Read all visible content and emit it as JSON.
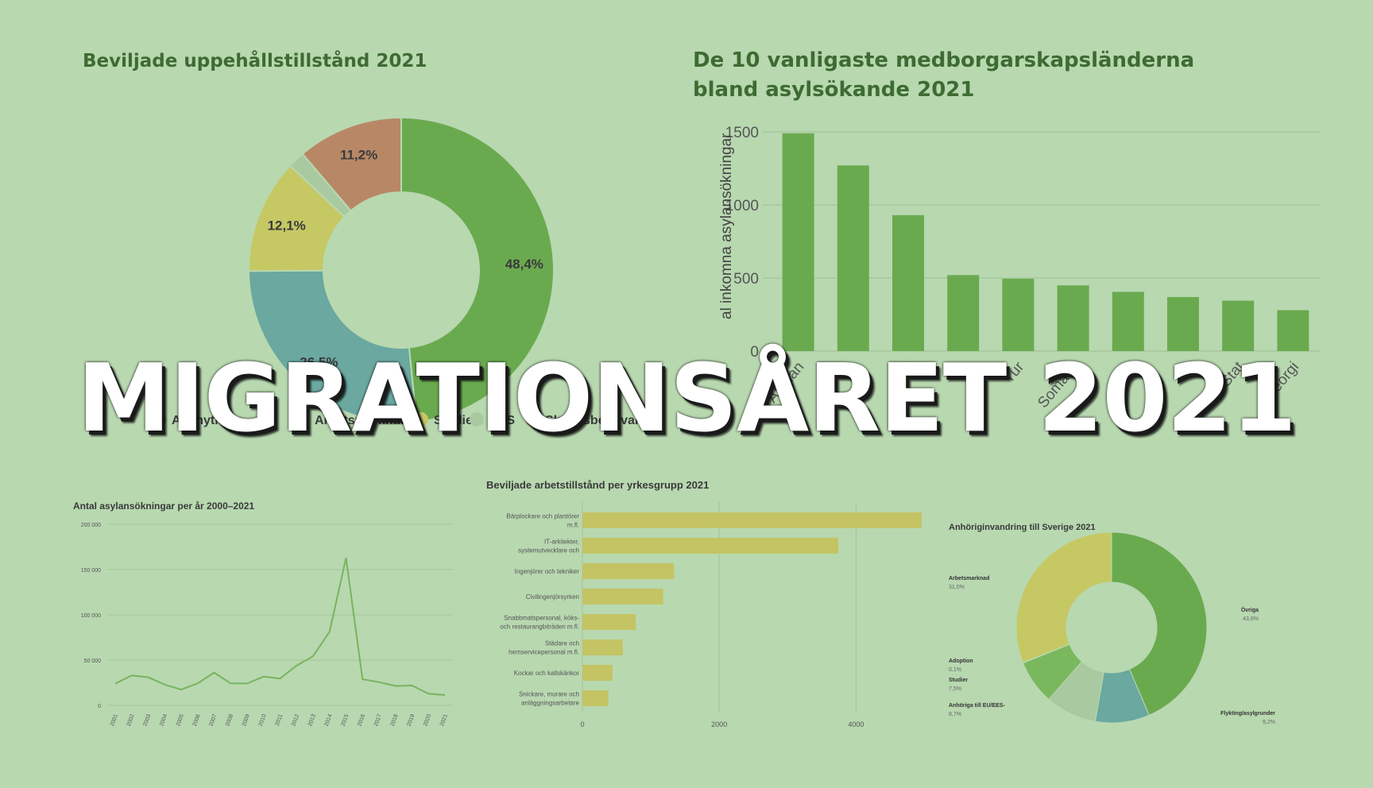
{
  "overlay": {
    "headline": "MIGRATIONSÅRET 2021"
  },
  "colors": {
    "background": "#b8d8b0",
    "green": "#6aaa4f",
    "teal": "#6aa8a0",
    "yellow": "#c6c864",
    "pale": "#a9c9a0",
    "brown": "#b88866",
    "bar_green": "#6aaa4f",
    "bar_yellow": "#c4c464",
    "line_green": "#78b45c"
  },
  "chart_data": [
    {
      "type": "pie",
      "title": "Beviljade uppehållstillstånd 2021",
      "slices": [
        {
          "label": "Anknytning",
          "value": 48.4,
          "display": "48,4%",
          "color": "#6aaa4f"
        },
        {
          "label": "Arbetsmarknad",
          "value": 26.5,
          "display": "26,5%",
          "color": "#6aa8a0"
        },
        {
          "label": "Studier",
          "value": 12.1,
          "display": "12,1%",
          "color": "#c6c864"
        },
        {
          "label": "EES",
          "value": 1.8,
          "display": "",
          "color": "#a9c9a0"
        },
        {
          "label": "Skyddsbehövande",
          "value": 11.2,
          "display": "11,2%",
          "color": "#b88866"
        }
      ],
      "legend_visible": [
        "Anknytning",
        "Arbetsmarknad",
        "Studier",
        "EES",
        "Skyddsbehövande"
      ],
      "legend_partial": [
        "nknyt",
        "Arbetsm",
        "l",
        "EES",
        "G",
        "ttn",
        "rand"
      ]
    },
    {
      "type": "bar",
      "title": "De 10 vanligaste medborgarskapsländerna bland asylsökande 2021",
      "ylabel": "Antal inkomna asylansökningar",
      "ylabel_visible": "al inkomna asylansökningar",
      "ylim": [
        0,
        1500
      ],
      "yticks": [
        "1500",
        "1000",
        "500",
        "0"
      ],
      "categories": [
        "Afghanistan",
        "Syrien",
        "Irak",
        "Iran",
        "Turkiet",
        "Somalia",
        "Eritrea",
        "Uzbekistan",
        "Statslös",
        "Georgien"
      ],
      "category_visible": [
        "Afghan",
        "",
        "ak",
        "n",
        "Tur",
        "Somalia",
        "Entr",
        "",
        "Stat",
        "Georgi"
      ],
      "values": [
        1490,
        1270,
        930,
        520,
        495,
        450,
        405,
        370,
        345,
        280
      ]
    },
    {
      "type": "line",
      "title": "Antal asylansökningar per år 2000–2021",
      "ylim": [
        0,
        200000
      ],
      "yticks": [
        "200 000",
        "150 000",
        "100 000",
        "50 000",
        "0"
      ],
      "x": [
        "2001",
        "2002",
        "2003",
        "2004",
        "2005",
        "2006",
        "2007",
        "2008",
        "2009",
        "2010",
        "2011",
        "2012",
        "2013",
        "2014",
        "2015",
        "2016",
        "2017",
        "2018",
        "2019",
        "2020",
        "2021"
      ],
      "values": [
        24000,
        33000,
        31000,
        23000,
        17500,
        24300,
        36200,
        24300,
        24200,
        31800,
        29600,
        43900,
        54300,
        81300,
        162900,
        28900,
        25700,
        21500,
        21900,
        12900,
        11400
      ]
    },
    {
      "type": "bar",
      "orientation": "horizontal",
      "title": "Beviljade arbetstillstånd per yrkesgrupp 2021",
      "categories": [
        [
          "Bärplockare och plantörer",
          "m.fl."
        ],
        [
          "IT-arkitekter,",
          "systemutvecklare och"
        ],
        [
          "Ingenjörer och tekniker"
        ],
        [
          "Civilingenjörsyrken"
        ],
        [
          "Snabbmatspersonal, köks-",
          "och restaurangbiträden m.fl."
        ],
        [
          "Städare och",
          "hemservicepersonal m.fl."
        ],
        [
          "Kockar och kallskänkor"
        ],
        [
          "Snickare, murare och",
          "anläggningsarbetare"
        ]
      ],
      "values": [
        5520,
        3740,
        1340,
        1180,
        780,
        590,
        440,
        380
      ],
      "xlim": [
        0,
        5600
      ],
      "xticks": [
        "0",
        "2000",
        "4000"
      ]
    },
    {
      "type": "pie",
      "title": "Anhöriginvandring till Sverige 2021",
      "slices": [
        {
          "label": "Övriga",
          "value": 43.6,
          "display": "43,6%",
          "color": "#6aaa4f"
        },
        {
          "label": "Flykting/asylgrunder",
          "value": 9.2,
          "display": "9,2%",
          "color": "#6aa8a0"
        },
        {
          "label": "Anhöriga till EU/EES-",
          "value": 8.7,
          "display": "8,7%",
          "color": "#a9c9a0"
        },
        {
          "label": "Studier",
          "value": 7.5,
          "display": "7,5%",
          "color": "#7ab85e"
        },
        {
          "label": "Adoption",
          "value": 0.1,
          "display": "0,1%",
          "color": "#c6c864"
        },
        {
          "label": "Arbetsmarknad",
          "value": 31.0,
          "display": "31,0%",
          "color": "#c6c864"
        }
      ]
    }
  ]
}
